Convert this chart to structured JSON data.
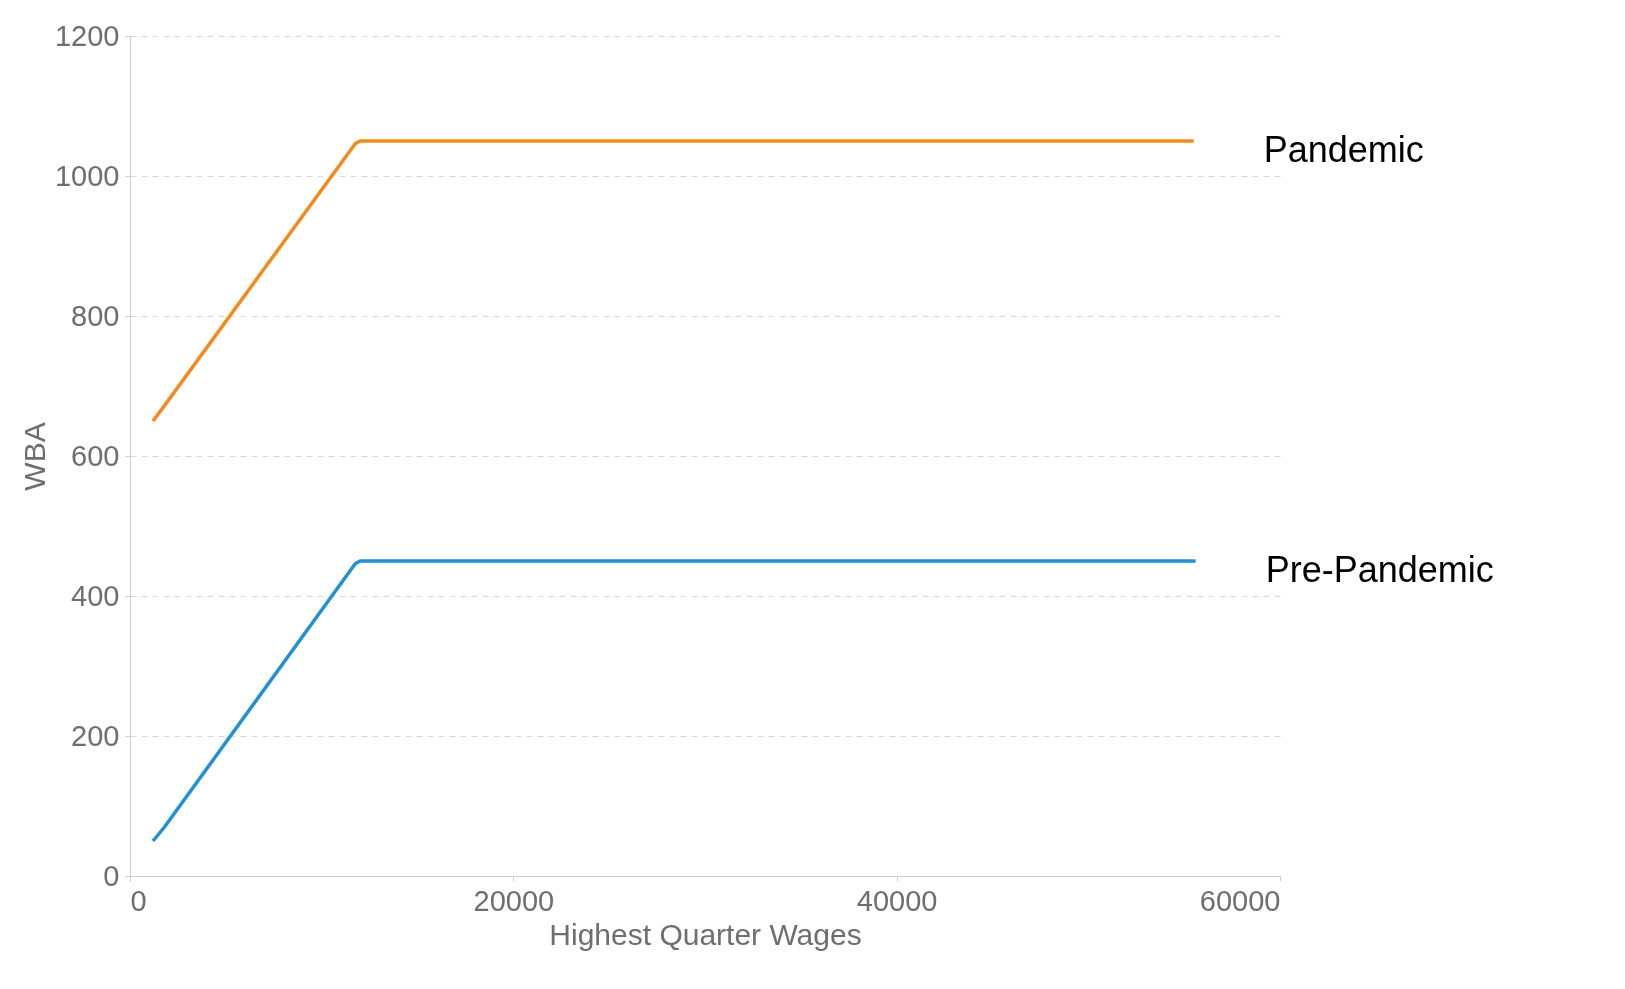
{
  "chart_data": {
    "type": "line",
    "xlabel": "Highest Quarter Wages",
    "ylabel": "WBA",
    "xlim": [
      0,
      60000
    ],
    "xticks": [
      0,
      20000,
      40000,
      60000
    ],
    "ylim": [
      0,
      1200
    ],
    "yticks": [
      0,
      200,
      400,
      600,
      800,
      1000,
      1200
    ],
    "grid": "y",
    "legend": false,
    "marker": "none",
    "line_style": "solid",
    "series": [
      {
        "name": "Pandemic",
        "color": "#f28b1e",
        "x": [
          1200,
          1800,
          11750,
          12000,
          55500
        ],
        "values": [
          650,
          672,
          1046,
          1050,
          1050
        ]
      },
      {
        "name": "Pre-Pandemic",
        "color": "#2390d2",
        "x": [
          1200,
          1800,
          11750,
          12000,
          55600
        ],
        "values": [
          50,
          70,
          446,
          450,
          450
        ]
      }
    ]
  }
}
